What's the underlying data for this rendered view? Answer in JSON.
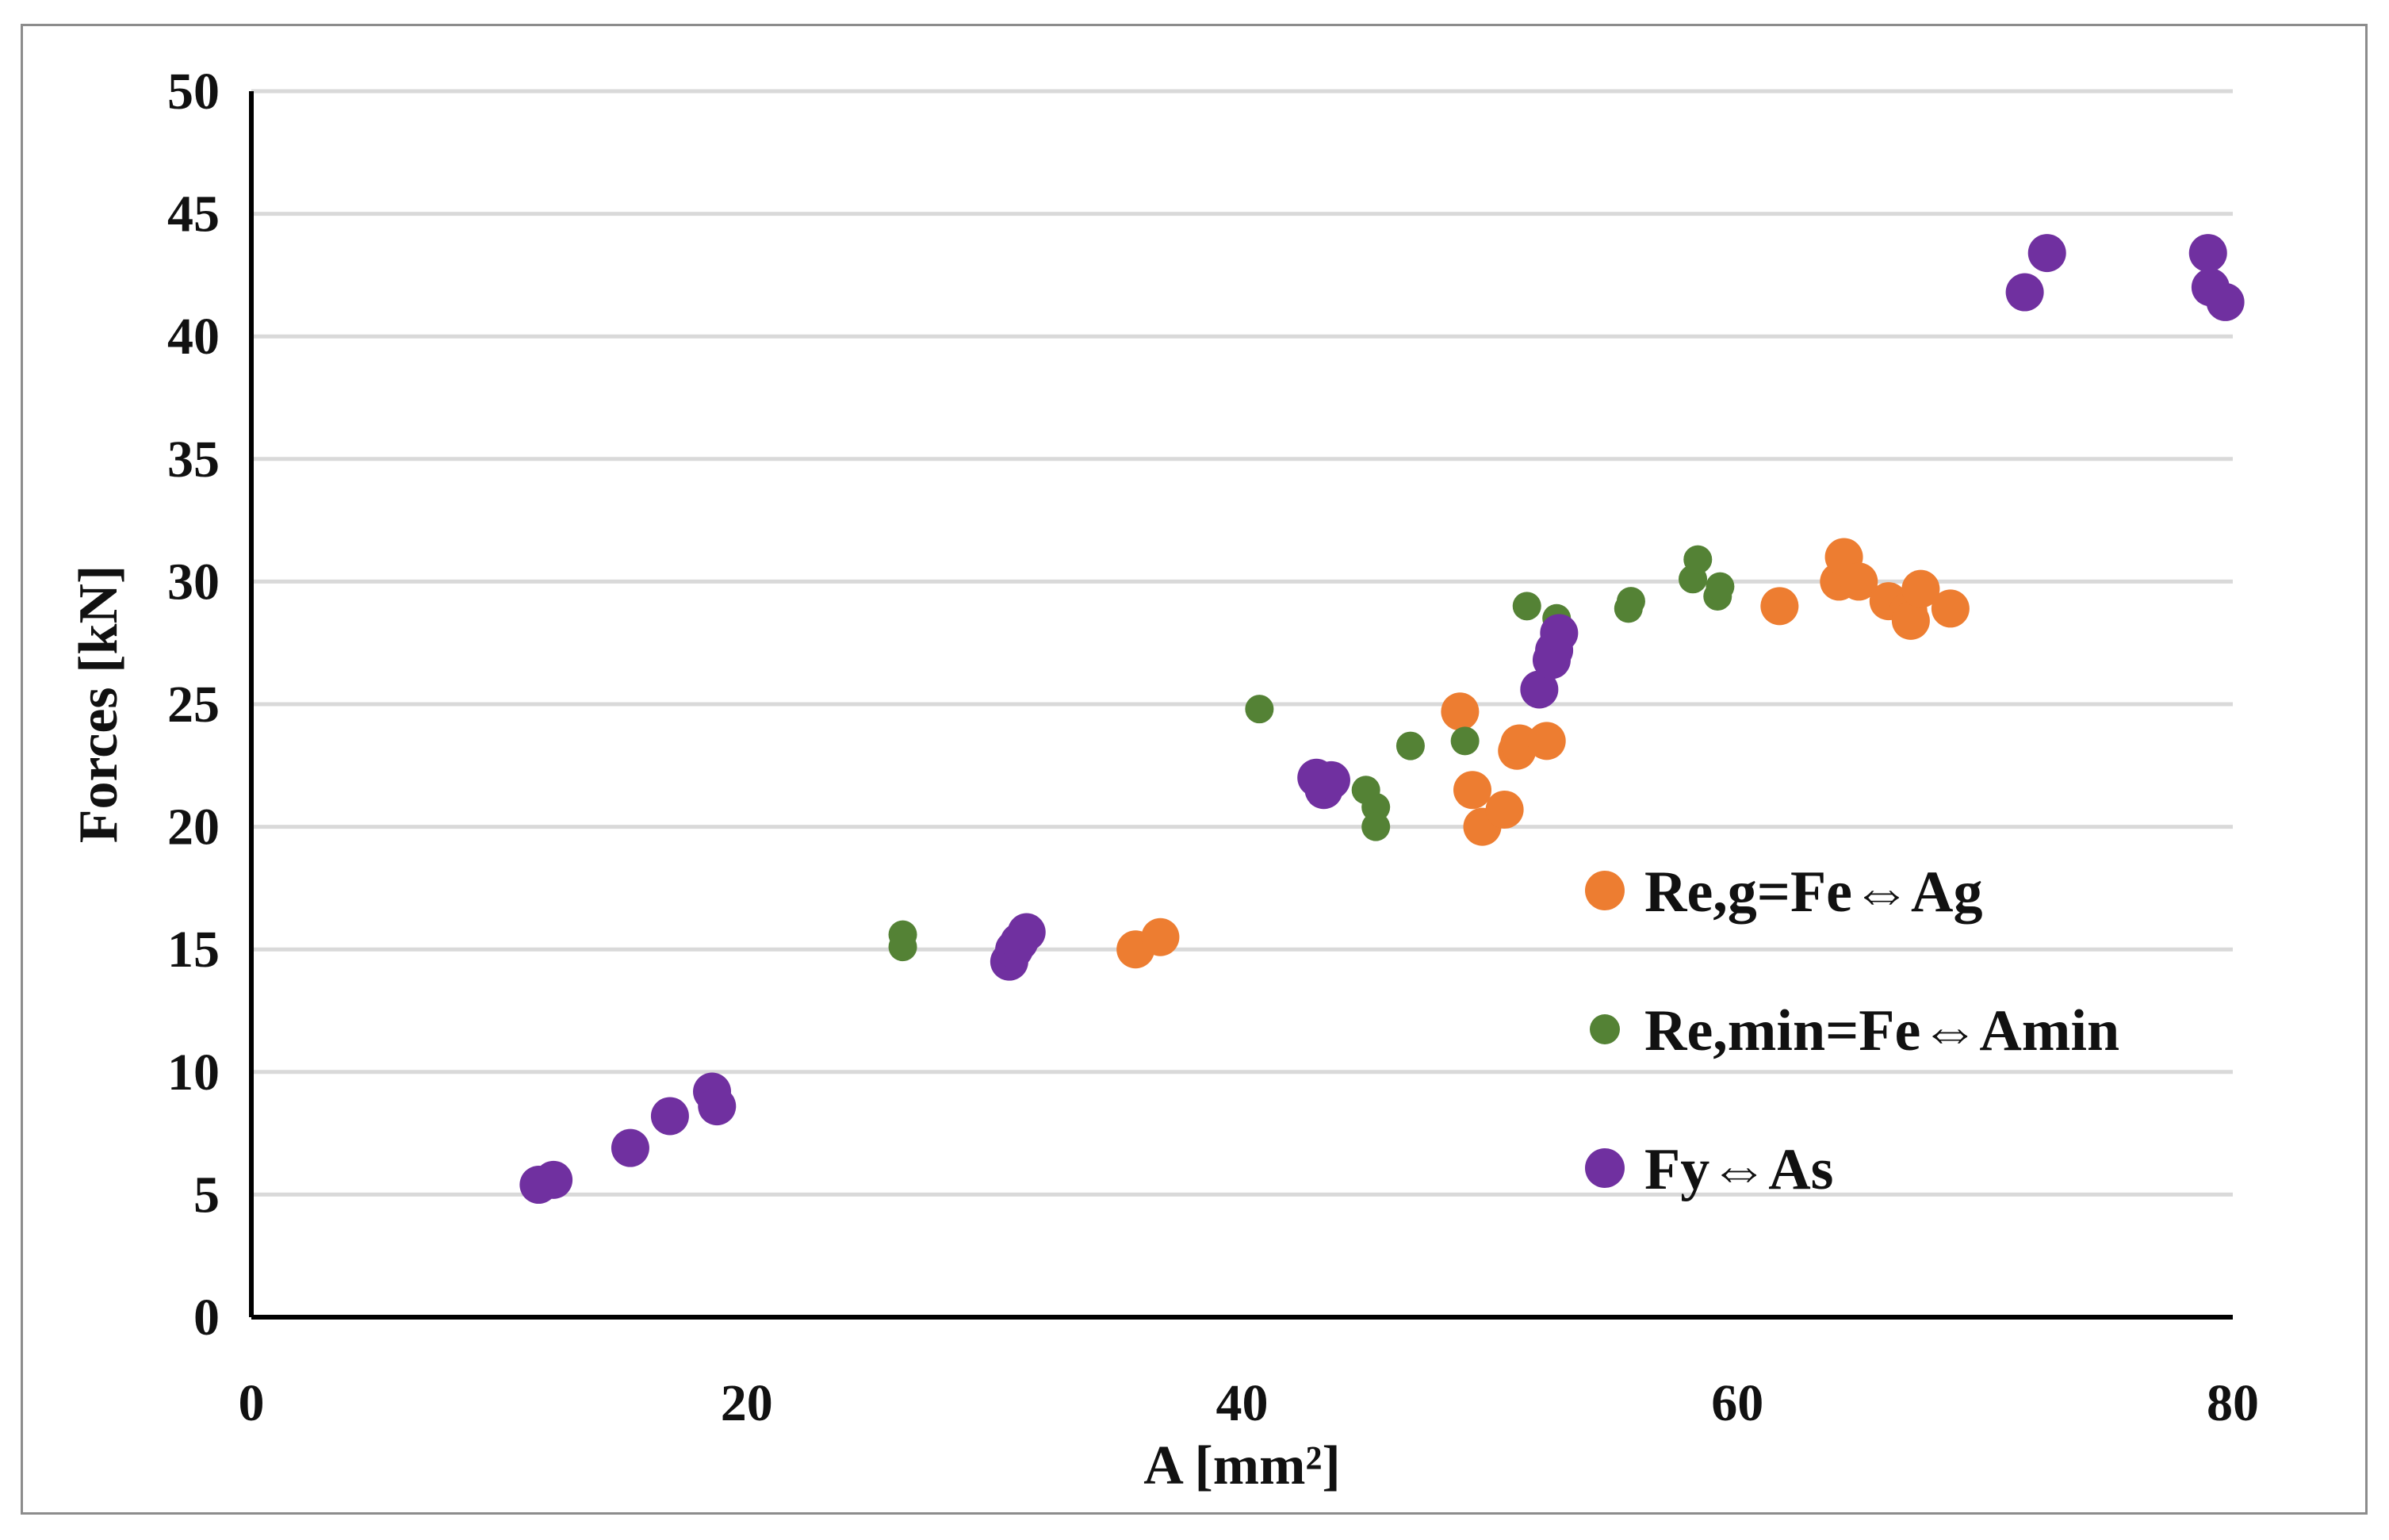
{
  "chart_data": {
    "type": "scatter",
    "title": "",
    "xlabel": "A [mm²]",
    "ylabel": "Forces [kN]",
    "xlim": [
      0,
      80
    ],
    "ylim": [
      0,
      50
    ],
    "x_ticks": [
      0,
      20,
      40,
      60,
      80
    ],
    "y_ticks": [
      0,
      5,
      10,
      15,
      20,
      25,
      30,
      35,
      40,
      45,
      50
    ],
    "grid": "horizontal",
    "legend_position": "center-right",
    "series": [
      {
        "name": "Re,g=Fe⇔Ag",
        "color": "#ED7D31",
        "marker_size": "large",
        "points": [
          [
            35.7,
            15.0
          ],
          [
            36.7,
            15.5
          ],
          [
            48.8,
            24.7
          ],
          [
            49.3,
            21.5
          ],
          [
            49.7,
            20.0
          ],
          [
            50.6,
            20.7
          ],
          [
            51.1,
            23.1
          ],
          [
            51.2,
            23.4
          ],
          [
            52.3,
            23.5
          ],
          [
            61.7,
            29.0
          ],
          [
            64.1,
            30.0
          ],
          [
            64.3,
            31.0
          ],
          [
            64.9,
            30.0
          ],
          [
            66.1,
            29.2
          ],
          [
            66.9,
            28.8
          ],
          [
            67.0,
            28.4
          ],
          [
            67.4,
            29.7
          ],
          [
            68.6,
            28.9
          ]
        ]
      },
      {
        "name": "Re,min=Fe⇔Amin",
        "color": "#548235",
        "marker_size": "small",
        "points": [
          [
            26.3,
            15.6
          ],
          [
            26.3,
            15.1
          ],
          [
            40.7,
            24.8
          ],
          [
            45.0,
            21.5
          ],
          [
            45.4,
            20.8
          ],
          [
            45.4,
            20.0
          ],
          [
            46.8,
            23.3
          ],
          [
            49.0,
            23.5
          ],
          [
            51.5,
            29.0
          ],
          [
            52.7,
            28.5
          ],
          [
            55.6,
            28.9
          ],
          [
            55.7,
            29.2
          ],
          [
            58.2,
            30.1
          ],
          [
            58.4,
            30.9
          ],
          [
            59.2,
            29.4
          ],
          [
            59.3,
            29.8
          ]
        ]
      },
      {
        "name": "Fy⇔As",
        "color": "#7030A0",
        "marker_size": "large",
        "points": [
          [
            11.6,
            5.4
          ],
          [
            12.2,
            5.6
          ],
          [
            15.3,
            6.9
          ],
          [
            16.9,
            8.2
          ],
          [
            18.6,
            9.2
          ],
          [
            18.8,
            8.6
          ],
          [
            30.6,
            14.5
          ],
          [
            30.8,
            15.0
          ],
          [
            31.0,
            15.3
          ],
          [
            31.3,
            15.7
          ],
          [
            43.0,
            22.0
          ],
          [
            43.3,
            21.5
          ],
          [
            43.6,
            21.9
          ],
          [
            52.0,
            25.6
          ],
          [
            52.5,
            26.8
          ],
          [
            52.6,
            27.2
          ],
          [
            52.8,
            27.9
          ],
          [
            71.6,
            41.8
          ],
          [
            72.5,
            43.4
          ],
          [
            79.0,
            43.4
          ],
          [
            79.1,
            42.0
          ],
          [
            79.7,
            41.4
          ]
        ]
      }
    ]
  }
}
